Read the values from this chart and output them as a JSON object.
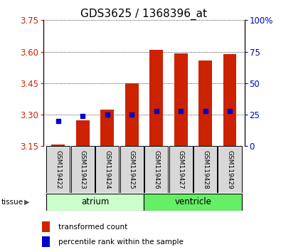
{
  "title": "GDS3625 / 1368396_at",
  "samples": [
    "GSM119422",
    "GSM119423",
    "GSM119424",
    "GSM119425",
    "GSM119426",
    "GSM119427",
    "GSM119428",
    "GSM119429"
  ],
  "bar_bottom": 3.15,
  "bar_tops": [
    3.158,
    3.272,
    3.325,
    3.448,
    3.608,
    3.592,
    3.558,
    3.588
  ],
  "percentile_vals_pct": [
    20,
    24,
    25,
    25,
    28,
    28,
    28,
    28
  ],
  "ylim_left": [
    3.15,
    3.75
  ],
  "ylim_right": [
    0,
    100
  ],
  "yticks_left": [
    3.15,
    3.3,
    3.45,
    3.6,
    3.75
  ],
  "yticks_right": [
    0,
    25,
    50,
    75,
    100
  ],
  "bar_color": "#cc2200",
  "marker_color": "#0000cc",
  "bar_width": 0.55,
  "grid_linestyle": "dotted",
  "bg_color": "#ffffff",
  "title_fontsize": 11,
  "left_tick_color": "#cc2200",
  "right_tick_color": "#0000cc",
  "atrium_color": "#ccffcc",
  "ventricle_color": "#66ee66",
  "box_color": "#d8d8d8",
  "n_atrium": 4,
  "n_ventricle": 4
}
